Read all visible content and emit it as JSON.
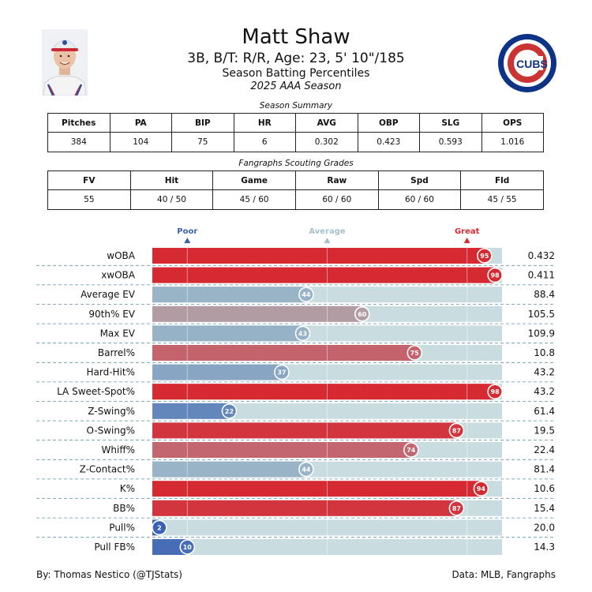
{
  "header": {
    "name": "Matt Shaw",
    "subtitle": "3B, B/T: R/R, Age: 23, 5' 10\"/185",
    "title": "Season Batting Percentiles",
    "season": "2025 AAA Season",
    "logo_text": "CUBS"
  },
  "season_summary": {
    "caption": "Season Summary",
    "headers": [
      "Pitches",
      "PA",
      "BIP",
      "HR",
      "AVG",
      "OBP",
      "SLG",
      "OPS"
    ],
    "values": [
      "384",
      "104",
      "75",
      "6",
      "0.302",
      "0.423",
      "0.593",
      "1.016"
    ]
  },
  "scouting": {
    "caption": "Fangraphs Scouting Grades",
    "headers": [
      "FV",
      "Hit",
      "Game",
      "Raw",
      "Spd",
      "Fld"
    ],
    "values": [
      "55",
      "40 / 50",
      "45 / 60",
      "60 / 60",
      "60 / 60",
      "45 / 55"
    ]
  },
  "footer": {
    "left": "By: Thomas Nestico (@TJStats)",
    "right": "Data: MLB, Fangraphs"
  },
  "colors": {
    "great": "#d62a33",
    "average": "#a7c1c9",
    "poor": "#3a63b3",
    "track": "#c9dde0"
  },
  "chart_data": {
    "type": "bar",
    "orientation": "horizontal",
    "xlim": [
      0,
      100
    ],
    "markers": [
      {
        "label": "Poor",
        "value": 10
      },
      {
        "label": "Average",
        "value": 50
      },
      {
        "label": "Great",
        "value": 90
      }
    ],
    "categories": [
      "wOBA",
      "xwOBA",
      "Average EV",
      "90th% EV",
      "Max EV",
      "Barrel%",
      "Hard-Hit%",
      "LA Sweet-Spot%",
      "Z-Swing%",
      "O-Swing%",
      "Whiff%",
      "Z-Contact%",
      "K%",
      "BB%",
      "Pull%",
      "Pull FB%"
    ],
    "percentiles": [
      95,
      98,
      44,
      60,
      43,
      75,
      37,
      98,
      22,
      87,
      74,
      44,
      94,
      87,
      2,
      10
    ],
    "stat_values": [
      "0.432",
      "0.411",
      "88.4",
      "105.5",
      "109.9",
      "10.8",
      "43.2",
      "43.2",
      "61.4",
      "19.5",
      "22.4",
      "81.4",
      "10.6",
      "15.4",
      "20.0",
      "14.3"
    ]
  }
}
